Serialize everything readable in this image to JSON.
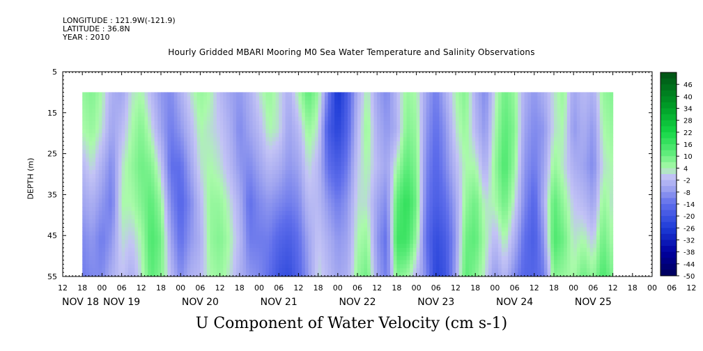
{
  "meta": {
    "longitude": "LONGITUDE : 121.9W(-121.9)",
    "latitude": "LATITUDE : 36.8N",
    "year": "YEAR : 2010"
  },
  "chart_data": {
    "type": "heatmap",
    "title": "Hourly Gridded MBARI Mooring M0 Sea Water Temperature and Salinity Observations",
    "xlabel": "U Component of Water Velocity (cm s-1)",
    "ylabel": "DEPTH (m)",
    "yticks": [
      5,
      15,
      25,
      35,
      45,
      55
    ],
    "ylim": [
      5,
      55
    ],
    "y_inverted": true,
    "x_hour_ticks": [
      "12",
      "18",
      "00",
      "06",
      "12",
      "18",
      "00",
      "06",
      "12",
      "18",
      "00",
      "06",
      "12",
      "18",
      "00",
      "06",
      "12",
      "18",
      "00",
      "06",
      "12",
      "18",
      "00",
      "06",
      "12",
      "18",
      "00",
      "06",
      "12",
      "18",
      "00",
      "06",
      "12"
    ],
    "date_labels": [
      "NOV 18",
      "NOV 19",
      "NOV 20",
      "NOV 21",
      "NOV 22",
      "NOV 23",
      "NOV 24",
      "NOV 25"
    ],
    "colorbar_labels": [
      "46",
      "40",
      "34",
      "28",
      "22",
      "16",
      "10",
      "4",
      "-2",
      "-8",
      "-14",
      "-20",
      "-26",
      "-32",
      "-38",
      "-44",
      "-50"
    ],
    "colorbar_range": [
      -50,
      52
    ],
    "data_depth_range": [
      10,
      55
    ],
    "columns": [
      {
        "t": 0,
        "v": [
          6,
          4,
          -2,
          -6,
          -10,
          -12
        ]
      },
      {
        "t": 3,
        "v": [
          8,
          6,
          2,
          -4,
          -8,
          -10
        ]
      },
      {
        "t": 6,
        "v": [
          4,
          2,
          -4,
          -8,
          -12,
          -10
        ]
      },
      {
        "t": 9,
        "v": [
          -4,
          -6,
          -10,
          -12,
          -8,
          -4
        ]
      },
      {
        "t": 12,
        "v": [
          -6,
          -2,
          2,
          4,
          2,
          0
        ]
      },
      {
        "t": 15,
        "v": [
          2,
          4,
          6,
          4,
          0,
          -4
        ]
      },
      {
        "t": 18,
        "v": [
          4,
          8,
          10,
          8,
          4,
          2
        ]
      },
      {
        "t": 21,
        "v": [
          -2,
          2,
          8,
          12,
          14,
          12
        ]
      },
      {
        "t": 24,
        "v": [
          -8,
          -6,
          0,
          6,
          10,
          8
        ]
      },
      {
        "t": 27,
        "v": [
          -10,
          -12,
          -14,
          -10,
          -6,
          -2
        ]
      },
      {
        "t": 30,
        "v": [
          -4,
          -8,
          -14,
          -16,
          -14,
          -10
        ]
      },
      {
        "t": 33,
        "v": [
          2,
          -2,
          -6,
          -10,
          -8,
          -4
        ]
      },
      {
        "t": 36,
        "v": [
          6,
          4,
          2,
          -2,
          -4,
          -2
        ]
      },
      {
        "t": 39,
        "v": [
          4,
          2,
          4,
          6,
          6,
          4
        ]
      },
      {
        "t": 42,
        "v": [
          -2,
          0,
          2,
          6,
          8,
          6
        ]
      },
      {
        "t": 45,
        "v": [
          -6,
          -4,
          -2,
          2,
          4,
          2
        ]
      },
      {
        "t": 48,
        "v": [
          -8,
          -10,
          -8,
          -4,
          -2,
          -4
        ]
      },
      {
        "t": 51,
        "v": [
          -4,
          -6,
          -10,
          -14,
          -12,
          -8
        ]
      },
      {
        "t": 54,
        "v": [
          2,
          -2,
          -6,
          -10,
          -12,
          -10
        ]
      },
      {
        "t": 57,
        "v": [
          6,
          4,
          -2,
          -8,
          -12,
          -14
        ]
      },
      {
        "t": 60,
        "v": [
          2,
          2,
          -4,
          -10,
          -16,
          -20
        ]
      },
      {
        "t": 63,
        "v": [
          -4,
          -6,
          -8,
          -12,
          -18,
          -22
        ]
      },
      {
        "t": 66,
        "v": [
          4,
          -2,
          -6,
          -10,
          -14,
          -16
        ]
      },
      {
        "t": 69,
        "v": [
          12,
          6,
          2,
          -2,
          -6,
          -8
        ]
      },
      {
        "t": 72,
        "v": [
          6,
          2,
          -2,
          -2,
          0,
          2
        ]
      },
      {
        "t": 75,
        "v": [
          -12,
          -18,
          -14,
          -8,
          -4,
          -2
        ]
      },
      {
        "t": 78,
        "v": [
          -28,
          -24,
          -18,
          -12,
          -8,
          -6
        ]
      },
      {
        "t": 81,
        "v": [
          -18,
          -16,
          -12,
          -8,
          -6,
          -4
        ]
      },
      {
        "t": 84,
        "v": [
          -4,
          -2,
          0,
          2,
          4,
          6
        ]
      },
      {
        "t": 87,
        "v": [
          4,
          6,
          4,
          2,
          6,
          10
        ]
      },
      {
        "t": 90,
        "v": [
          -6,
          -4,
          -2,
          -6,
          -8,
          -6
        ]
      },
      {
        "t": 93,
        "v": [
          -10,
          -8,
          -6,
          -10,
          -14,
          -12
        ]
      },
      {
        "t": 96,
        "v": [
          -2,
          -4,
          4,
          12,
          16,
          8
        ]
      },
      {
        "t": 99,
        "v": [
          6,
          8,
          12,
          18,
          16,
          6
        ]
      },
      {
        "t": 102,
        "v": [
          4,
          6,
          8,
          10,
          6,
          -2
        ]
      },
      {
        "t": 105,
        "v": [
          -6,
          -8,
          -10,
          -12,
          -14,
          -10
        ]
      },
      {
        "t": 108,
        "v": [
          -12,
          -14,
          -16,
          -18,
          -22,
          -24
        ]
      },
      {
        "t": 111,
        "v": [
          -4,
          -8,
          -10,
          -14,
          -18,
          -20
        ]
      },
      {
        "t": 114,
        "v": [
          4,
          2,
          -2,
          -6,
          -8,
          -6
        ]
      },
      {
        "t": 117,
        "v": [
          8,
          6,
          4,
          6,
          10,
          12
        ]
      },
      {
        "t": 120,
        "v": [
          -4,
          -2,
          4,
          10,
          12,
          8
        ]
      },
      {
        "t": 123,
        "v": [
          -10,
          -8,
          -4,
          2,
          4,
          2
        ]
      },
      {
        "t": 126,
        "v": [
          2,
          4,
          6,
          4,
          -2,
          -8
        ]
      },
      {
        "t": 129,
        "v": [
          10,
          12,
          14,
          10,
          4,
          -2
        ]
      },
      {
        "t": 132,
        "v": [
          6,
          8,
          6,
          2,
          -4,
          -10
        ]
      },
      {
        "t": 135,
        "v": [
          -4,
          -6,
          -8,
          -10,
          -14,
          -16
        ]
      },
      {
        "t": 138,
        "v": [
          -8,
          -10,
          -12,
          -16,
          -18,
          -16
        ]
      },
      {
        "t": 141,
        "v": [
          -4,
          -8,
          -6,
          -4,
          -8,
          -12
        ]
      },
      {
        "t": 144,
        "v": [
          2,
          2,
          6,
          12,
          14,
          8
        ]
      },
      {
        "t": 147,
        "v": [
          6,
          4,
          2,
          6,
          10,
          6
        ]
      },
      {
        "t": 150,
        "v": [
          -6,
          -8,
          -4,
          0,
          2,
          4
        ]
      },
      {
        "t": 153,
        "v": [
          -2,
          -4,
          -6,
          -2,
          4,
          10
        ]
      },
      {
        "t": 156,
        "v": [
          -4,
          -8,
          -10,
          -6,
          0,
          6
        ]
      },
      {
        "t": 159,
        "v": [
          6,
          4,
          2,
          6,
          10,
          14
        ]
      },
      {
        "t": 162,
        "v": [
          8,
          6,
          4,
          2,
          4,
          8
        ]
      }
    ]
  }
}
